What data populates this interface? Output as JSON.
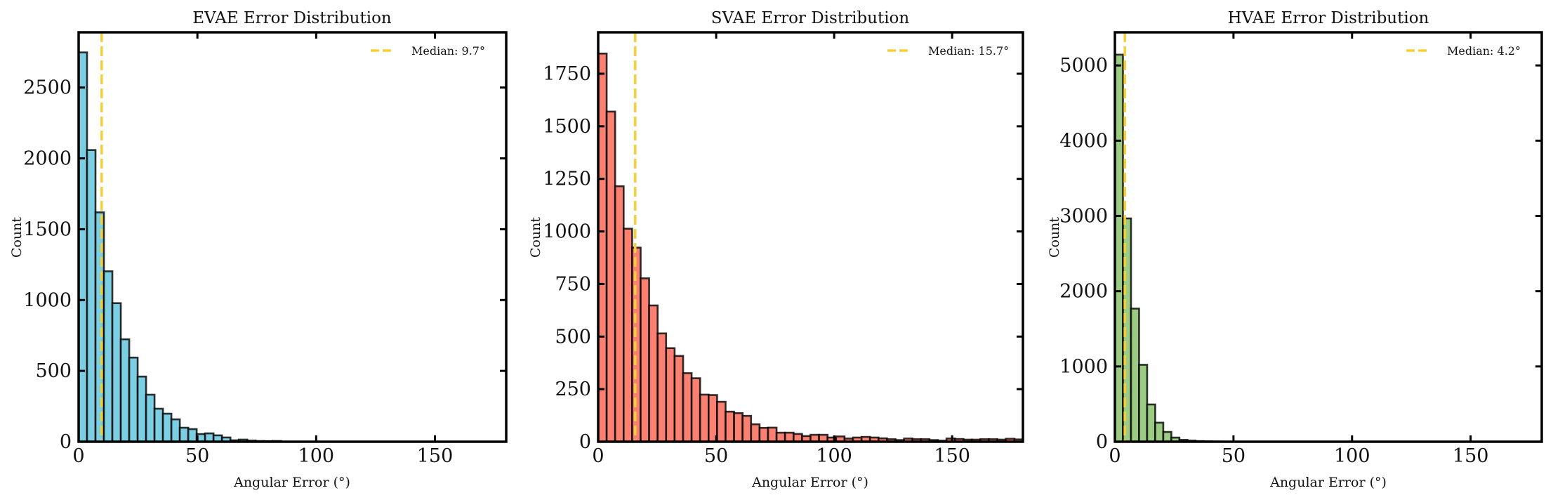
{
  "chart_data": [
    {
      "type": "bar",
      "title": "EVAE Error Distribution",
      "xlabel": "Angular Error (°)",
      "ylabel": "Count",
      "xlim": [
        0,
        180
      ],
      "ylim": [
        0,
        2890
      ],
      "xticks": [
        0,
        50,
        100,
        150
      ],
      "yticks": [
        0,
        500,
        1000,
        1500,
        2000,
        2500
      ],
      "bin_width": 3.55,
      "values": [
        2748,
        2059,
        1619,
        1203,
        978,
        723,
        594,
        460,
        332,
        233,
        198,
        158,
        99,
        89,
        54,
        59,
        45,
        30,
        10,
        15,
        8,
        5,
        4,
        5
      ],
      "median": 9.7,
      "legend": "Median: 9.7°",
      "legend_position": "top-right",
      "bar_color": "#7ccfe3",
      "median_color": "#f5cf3a"
    },
    {
      "type": "bar",
      "title": "SVAE Error Distribution",
      "xlabel": "Angular Error (°)",
      "ylabel": "Count",
      "xlim": [
        0,
        180
      ],
      "ylim": [
        0,
        1947
      ],
      "xticks": [
        0,
        50,
        100,
        150
      ],
      "yticks": [
        0,
        250,
        500,
        750,
        1000,
        1250,
        1500,
        1750
      ],
      "bin_width": 3.6,
      "values": [
        1846,
        1570,
        1215,
        1013,
        923,
        777,
        648,
        515,
        445,
        408,
        326,
        302,
        224,
        222,
        190,
        143,
        136,
        123,
        83,
        66,
        67,
        43,
        43,
        37,
        27,
        33,
        33,
        20,
        25,
        15,
        20,
        23,
        20,
        16,
        12,
        8,
        15,
        12,
        12,
        8,
        5,
        15,
        13,
        10,
        10,
        12,
        12,
        10,
        14,
        11
      ],
      "median": 15.7,
      "legend": "Median: 15.7°",
      "legend_position": "top-right",
      "bar_color": "#fa8072",
      "median_color": "#f5cf3a"
    },
    {
      "type": "bar",
      "title": "HVAE Error Distribution",
      "xlabel": "Angular Error (°)",
      "ylabel": "Count",
      "xlim": [
        0,
        180
      ],
      "ylim": [
        0,
        5440
      ],
      "xticks": [
        0,
        50,
        100,
        150
      ],
      "yticks": [
        0,
        1000,
        2000,
        3000,
        4000,
        5000
      ],
      "bin_width": 3.4,
      "values": [
        5143,
        2967,
        1769,
        1022,
        495,
        253,
        130,
        55,
        25,
        15,
        8,
        5,
        3
      ],
      "median": 4.2,
      "legend": "Median: 4.2°",
      "legend_position": "top-right",
      "bar_color": "#9ccc84",
      "median_color": "#f5cf3a"
    }
  ]
}
